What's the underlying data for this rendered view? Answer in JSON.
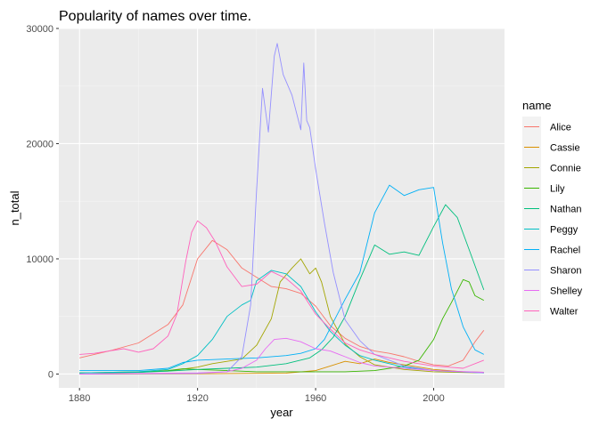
{
  "chart_data": {
    "type": "line",
    "title": "Popularity of names over time.",
    "xlabel": "year",
    "ylabel": "n_total",
    "xlim": [
      1880,
      2017
    ],
    "ylim": [
      -1200,
      30000
    ],
    "xticks": [
      1880,
      1920,
      1960,
      2000
    ],
    "yticks": [
      0,
      10000,
      20000,
      30000
    ],
    "grid": true,
    "legend": {
      "title": "name",
      "position": "right"
    },
    "series": [
      {
        "name": "Alice",
        "color": "#F8766D",
        "x": [
          1880,
          1890,
          1900,
          1910,
          1915,
          1920,
          1925,
          1930,
          1935,
          1940,
          1945,
          1950,
          1955,
          1960,
          1965,
          1970,
          1975,
          1980,
          1985,
          1990,
          1995,
          2000,
          2005,
          2010,
          2014,
          2017
        ],
        "y": [
          1400,
          2000,
          2700,
          4300,
          6000,
          10000,
          11600,
          10800,
          9200,
          8400,
          7600,
          7400,
          7000,
          5900,
          4200,
          3100,
          2400,
          2000,
          1800,
          1500,
          1100,
          800,
          700,
          1200,
          2800,
          3800
        ]
      },
      {
        "name": "Cassie",
        "color": "#D89000",
        "x": [
          1880,
          1920,
          1950,
          1960,
          1965,
          1970,
          1975,
          1980,
          1985,
          1990,
          1995,
          2000,
          2005,
          2010,
          2017
        ],
        "y": [
          0,
          20,
          80,
          300,
          700,
          1100,
          900,
          1300,
          1000,
          800,
          600,
          400,
          300,
          200,
          150
        ]
      },
      {
        "name": "Connie",
        "color": "#A3A500",
        "x": [
          1880,
          1910,
          1920,
          1925,
          1930,
          1935,
          1940,
          1945,
          1948,
          1952,
          1955,
          1958,
          1960,
          1962,
          1965,
          1970,
          1975,
          1980,
          1990,
          2000,
          2017
        ],
        "y": [
          100,
          250,
          600,
          900,
          1100,
          1300,
          2500,
          4800,
          8000,
          9200,
          10000,
          8700,
          9200,
          8000,
          5000,
          2600,
          1500,
          800,
          400,
          200,
          100
        ]
      },
      {
        "name": "Lily",
        "color": "#39B600",
        "x": [
          1880,
          1900,
          1910,
          1915,
          1920,
          1930,
          1940,
          1950,
          1960,
          1970,
          1980,
          1985,
          1990,
          1995,
          2000,
          2003,
          2006,
          2010,
          2012,
          2014,
          2017
        ],
        "y": [
          100,
          150,
          300,
          450,
          400,
          300,
          200,
          200,
          200,
          200,
          300,
          500,
          700,
          1200,
          3000,
          4800,
          6200,
          8200,
          8000,
          6800,
          6400
        ]
      },
      {
        "name": "Nathan",
        "color": "#00BF7D",
        "x": [
          1880,
          1900,
          1910,
          1920,
          1930,
          1940,
          1950,
          1958,
          1962,
          1966,
          1970,
          1975,
          1980,
          1985,
          1990,
          1995,
          2000,
          2004,
          2008,
          2012,
          2017
        ],
        "y": [
          100,
          150,
          250,
          400,
          500,
          600,
          900,
          1400,
          2100,
          3200,
          5000,
          8200,
          11200,
          10400,
          10600,
          10300,
          12800,
          14700,
          13600,
          10800,
          7300
        ]
      },
      {
        "name": "Peggy",
        "color": "#00BFC4",
        "x": [
          1880,
          1900,
          1910,
          1915,
          1920,
          1925,
          1930,
          1935,
          1938,
          1940,
          1945,
          1950,
          1955,
          1960,
          1965,
          1970,
          1975,
          1980,
          1990,
          2000,
          2017
        ],
        "y": [
          100,
          200,
          400,
          900,
          1600,
          3000,
          5000,
          6000,
          6400,
          8100,
          9000,
          8700,
          7600,
          5400,
          3700,
          2500,
          1600,
          1200,
          600,
          300,
          100
        ]
      },
      {
        "name": "Rachel",
        "color": "#00B0F6",
        "x": [
          1880,
          1900,
          1910,
          1915,
          1920,
          1930,
          1940,
          1950,
          1955,
          1960,
          1963,
          1966,
          1970,
          1975,
          1980,
          1985,
          1990,
          1995,
          2000,
          2003,
          2006,
          2010,
          2014,
          2017
        ],
        "y": [
          300,
          300,
          500,
          1000,
          1200,
          1300,
          1400,
          1600,
          1800,
          2200,
          3000,
          4500,
          6500,
          8800,
          14000,
          16400,
          15500,
          16000,
          16200,
          11400,
          7400,
          4100,
          2100,
          1700
        ]
      },
      {
        "name": "Sharon",
        "color": "#9590FF",
        "x": [
          1880,
          1920,
          1930,
          1935,
          1938,
          1940,
          1942,
          1944,
          1946,
          1947,
          1949,
          1952,
          1955,
          1956,
          1957,
          1958,
          1960,
          1963,
          1966,
          1970,
          1975,
          1980,
          1990,
          2000,
          2017
        ],
        "y": [
          0,
          50,
          200,
          1500,
          6000,
          16000,
          24800,
          21000,
          27600,
          28700,
          26000,
          24200,
          21200,
          27000,
          22000,
          21400,
          17800,
          13100,
          8800,
          4700,
          2900,
          1700,
          700,
          300,
          100
        ]
      },
      {
        "name": "Shelley",
        "color": "#E76BF3",
        "x": [
          1880,
          1920,
          1930,
          1935,
          1940,
          1943,
          1946,
          1950,
          1955,
          1960,
          1965,
          1970,
          1975,
          1980,
          1990,
          2000,
          2017
        ],
        "y": [
          0,
          100,
          200,
          500,
          1200,
          2200,
          3000,
          3100,
          2800,
          2200,
          2000,
          1500,
          1000,
          700,
          500,
          300,
          150
        ]
      },
      {
        "name": "Walter",
        "color": "#FF62BC",
        "x": [
          1880,
          1885,
          1890,
          1895,
          1900,
          1905,
          1910,
          1913,
          1916,
          1918,
          1920,
          1923,
          1926,
          1930,
          1935,
          1940,
          1945,
          1950,
          1955,
          1960,
          1965,
          1970,
          1975,
          1980,
          1990,
          2000,
          2010,
          2017
        ],
        "y": [
          1700,
          1800,
          2000,
          2200,
          1900,
          2200,
          3300,
          5200,
          9800,
          12300,
          13300,
          12700,
          11500,
          9300,
          7600,
          7800,
          8900,
          8300,
          7200,
          5200,
          3900,
          2700,
          2100,
          1700,
          1100,
          700,
          500,
          1200
        ]
      }
    ]
  }
}
